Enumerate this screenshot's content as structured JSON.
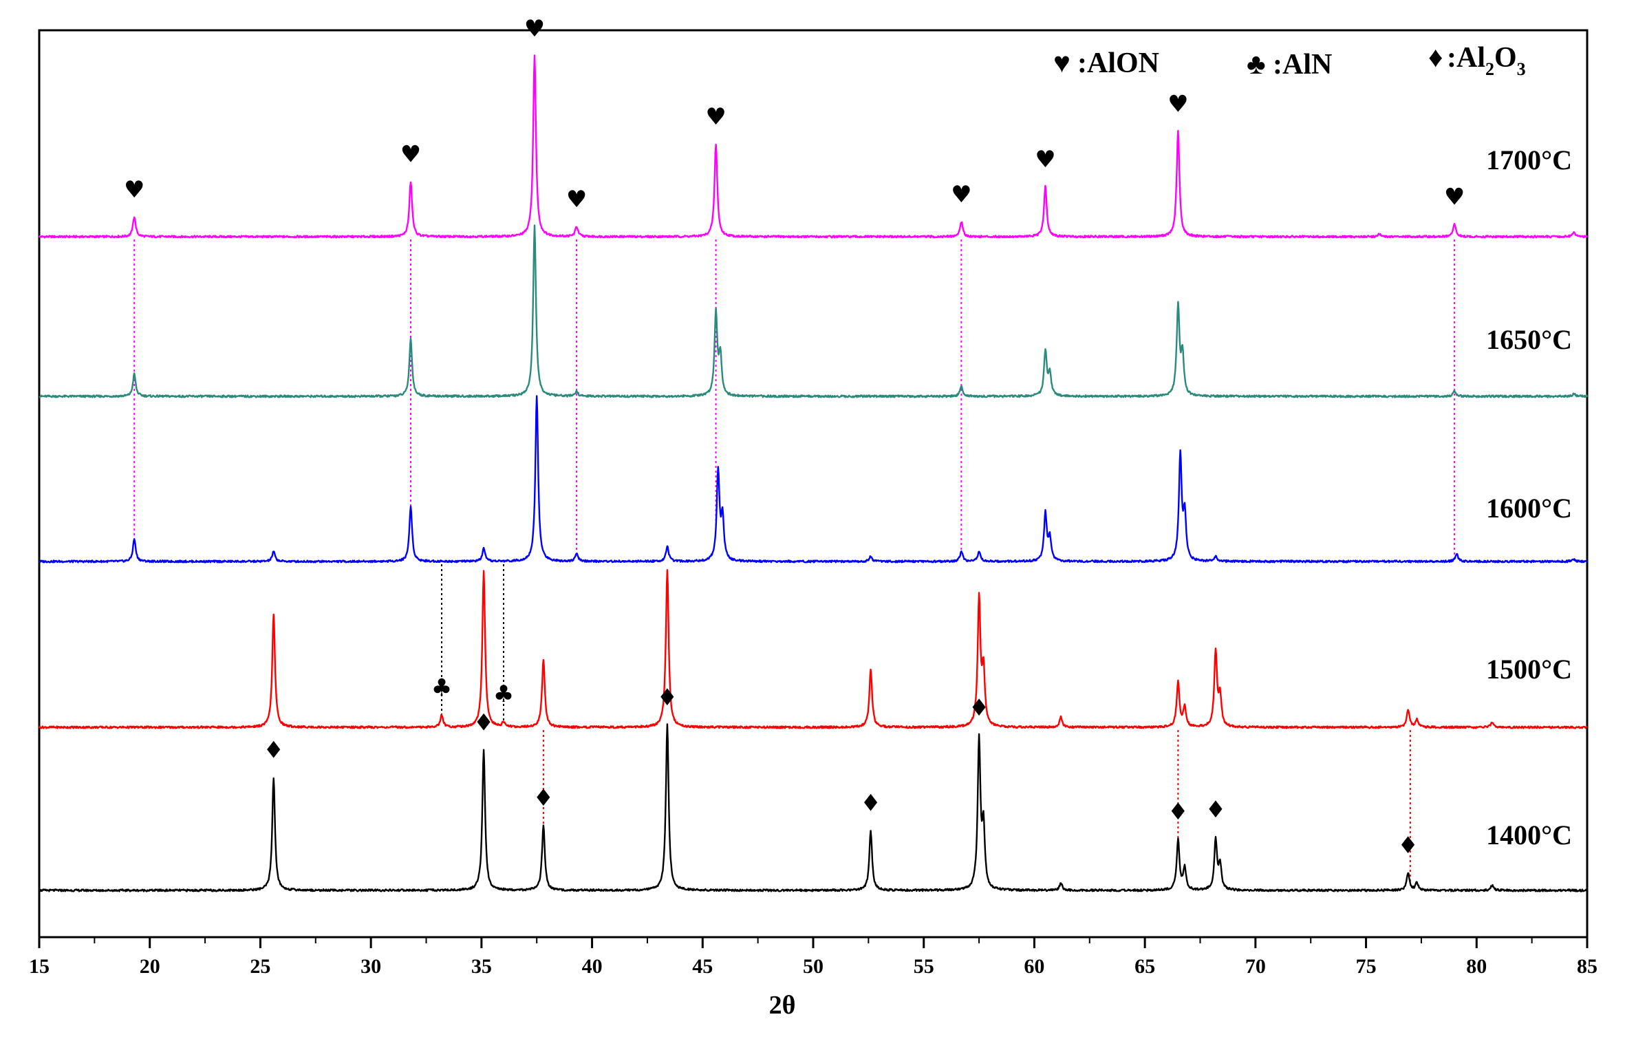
{
  "chart_data": {
    "type": "line",
    "xlabel": "2θ",
    "xlim": [
      15,
      85
    ],
    "x_ticks": [
      15,
      20,
      25,
      30,
      35,
      40,
      45,
      50,
      55,
      60,
      65,
      70,
      75,
      80,
      85
    ],
    "legend": [
      {
        "symbol": "♥",
        "text": ":AlON"
      },
      {
        "symbol": "♣",
        "text": ":AlN"
      },
      {
        "symbol": "♦",
        "text": ":Al",
        "sub1": "2",
        "mid": "O",
        "sub2": "3"
      }
    ],
    "series": [
      {
        "name": "1700°C",
        "color": "#ff00ff",
        "baseline": 0.0,
        "peaks": [
          [
            19.3,
            0.08
          ],
          [
            31.8,
            0.22
          ],
          [
            37.4,
            0.72
          ],
          [
            39.3,
            0.04
          ],
          [
            45.6,
            0.37
          ],
          [
            56.7,
            0.06
          ],
          [
            60.5,
            0.2
          ],
          [
            66.5,
            0.42
          ],
          [
            75.6,
            0.01
          ],
          [
            79.0,
            0.05
          ],
          [
            84.4,
            0.02
          ]
        ]
      },
      {
        "name": "1650°C",
        "color": "#2a8a7c",
        "baseline": 0.0,
        "peaks": [
          [
            19.3,
            0.09
          ],
          [
            31.8,
            0.23
          ],
          [
            37.4,
            0.68
          ],
          [
            39.3,
            0.02
          ],
          [
            45.6,
            0.33
          ],
          [
            45.8,
            0.16
          ],
          [
            56.7,
            0.04
          ],
          [
            60.5,
            0.18
          ],
          [
            60.7,
            0.09
          ],
          [
            66.5,
            0.36
          ],
          [
            66.7,
            0.16
          ],
          [
            79.0,
            0.02
          ],
          [
            84.4,
            0.01
          ]
        ]
      },
      {
        "name": "1600°C",
        "color": "#0000ff",
        "baseline": 0.0,
        "peaks": [
          [
            19.3,
            0.09
          ],
          [
            25.6,
            0.04
          ],
          [
            31.8,
            0.22
          ],
          [
            35.1,
            0.05
          ],
          [
            37.5,
            0.66
          ],
          [
            39.3,
            0.03
          ],
          [
            43.4,
            0.06
          ],
          [
            45.7,
            0.36
          ],
          [
            45.9,
            0.17
          ],
          [
            52.6,
            0.02
          ],
          [
            56.7,
            0.04
          ],
          [
            57.5,
            0.04
          ],
          [
            60.5,
            0.19
          ],
          [
            60.7,
            0.09
          ],
          [
            66.6,
            0.42
          ],
          [
            66.8,
            0.18
          ],
          [
            68.2,
            0.02
          ],
          [
            79.1,
            0.03
          ],
          [
            84.4,
            0.01
          ]
        ]
      },
      {
        "name": "1500°C",
        "color": "#ff0000",
        "baseline": 0.0,
        "peaks": [
          [
            25.6,
            0.45
          ],
          [
            33.2,
            0.05
          ],
          [
            35.1,
            0.62
          ],
          [
            36.0,
            0.02
          ],
          [
            37.8,
            0.27
          ],
          [
            43.4,
            0.63
          ],
          [
            52.6,
            0.23
          ],
          [
            57.5,
            0.51
          ],
          [
            57.7,
            0.22
          ],
          [
            61.2,
            0.04
          ],
          [
            66.5,
            0.18
          ],
          [
            66.8,
            0.08
          ],
          [
            68.2,
            0.3
          ],
          [
            68.4,
            0.12
          ],
          [
            76.9,
            0.07
          ],
          [
            77.3,
            0.03
          ],
          [
            80.7,
            0.02
          ]
        ]
      },
      {
        "name": "1400°C",
        "color": "#000000",
        "baseline": 0.0,
        "peaks": [
          [
            25.6,
            0.45
          ],
          [
            35.1,
            0.56
          ],
          [
            37.8,
            0.26
          ],
          [
            43.4,
            0.66
          ],
          [
            52.6,
            0.24
          ],
          [
            57.5,
            0.59
          ],
          [
            57.7,
            0.24
          ],
          [
            61.2,
            0.03
          ],
          [
            66.5,
            0.2
          ],
          [
            66.8,
            0.09
          ],
          [
            68.2,
            0.2
          ],
          [
            68.4,
            0.1
          ],
          [
            76.9,
            0.07
          ],
          [
            77.3,
            0.03
          ],
          [
            80.7,
            0.02
          ]
        ]
      }
    ],
    "markers": [
      {
        "series": "1700°C",
        "symbol": "♥",
        "x": [
          19.3,
          31.8,
          37.4,
          39.3,
          45.6,
          56.7,
          60.5,
          66.5,
          79.0
        ]
      },
      {
        "series": "1500°C",
        "symbol": "♣",
        "x": [
          33.2,
          36.0
        ]
      },
      {
        "series": "1400°C",
        "symbol": "♦",
        "x": [
          25.6,
          35.1,
          37.8,
          43.4,
          52.6,
          57.5,
          66.5,
          68.2,
          76.9
        ]
      }
    ],
    "guide_lines": [
      {
        "color": "#ff00ff",
        "style": "dotted",
        "x": [
          19.3,
          31.8,
          39.3,
          45.6,
          56.7,
          79.0
        ],
        "from": "1700°C",
        "to": "1600°C"
      },
      {
        "color": "#000000",
        "style": "dotted",
        "x": [
          33.2,
          36.0
        ],
        "from": "1600°C",
        "to": "1500°C"
      },
      {
        "color": "#ff0000",
        "style": "dotted",
        "x": [
          37.8,
          66.5,
          77.0
        ],
        "from": "1500°C",
        "to": "1400°C"
      }
    ]
  }
}
